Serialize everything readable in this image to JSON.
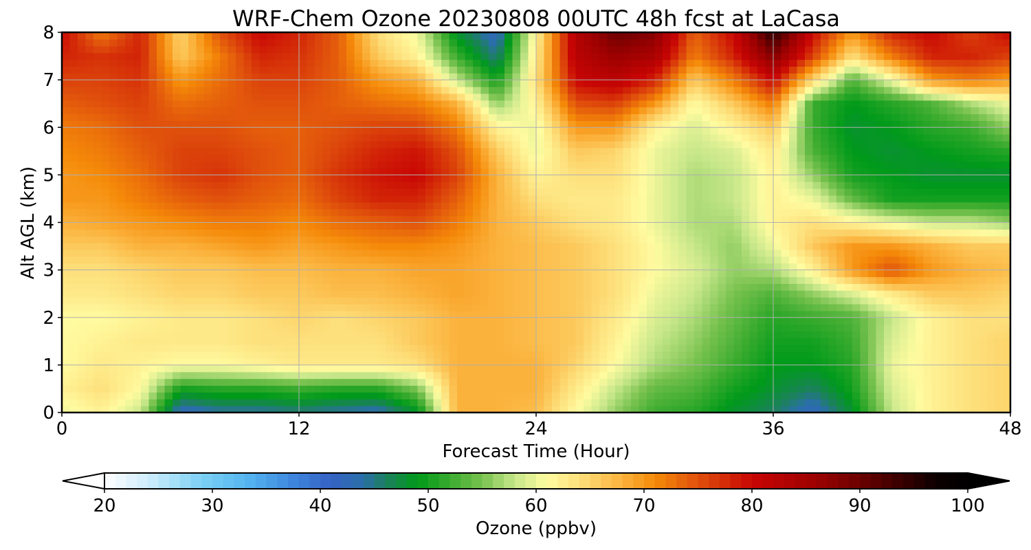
{
  "chart_data": {
    "type": "heatmap",
    "title": "WRF-Chem Ozone  20230808 00UTC 48h fcst at LaCasa",
    "xlabel": "Forecast Time (Hour)",
    "ylabel": "Alt AGL (km)",
    "xlim": [
      0,
      48
    ],
    "ylim": [
      0,
      8
    ],
    "x_ticks": [
      0,
      12,
      24,
      36,
      48
    ],
    "y_ticks": [
      0,
      1,
      2,
      3,
      4,
      5,
      6,
      7,
      8
    ],
    "grid": true,
    "x": [
      0,
      2,
      4,
      6,
      8,
      10,
      12,
      14,
      16,
      18,
      20,
      22,
      24,
      26,
      28,
      30,
      32,
      34,
      36,
      38,
      40,
      42,
      44,
      46,
      48
    ],
    "y": [
      0,
      0.5,
      1,
      1.5,
      2,
      2.5,
      3,
      3.5,
      4,
      4.5,
      5,
      5.5,
      6,
      6.5,
      7,
      7.5,
      8
    ],
    "z_units": "ppbv",
    "z": [
      [
        60,
        62,
        58,
        42,
        44,
        44,
        45,
        44,
        43,
        48,
        68,
        68,
        67,
        61,
        56,
        52,
        51,
        48,
        46,
        42,
        48,
        58,
        62,
        64,
        65
      ],
      [
        62,
        64,
        61,
        50,
        51,
        51,
        52,
        51,
        51,
        55,
        68,
        68,
        68,
        63,
        58,
        54,
        53,
        50,
        48,
        46,
        50,
        59,
        62,
        64,
        65
      ],
      [
        61,
        63,
        62,
        61,
        61,
        62,
        63,
        63,
        63,
        64,
        68,
        68,
        68,
        65,
        61,
        57,
        55,
        52,
        49,
        49,
        51,
        60,
        62,
        64,
        65
      ],
      [
        61,
        62,
        63,
        63,
        63,
        64,
        64,
        64,
        64,
        66,
        68,
        68,
        67,
        66,
        62,
        58,
        56,
        53,
        50,
        50,
        52,
        59,
        62,
        64,
        65
      ],
      [
        61,
        61,
        62,
        63,
        63,
        64,
        65,
        64,
        65,
        66,
        68,
        68,
        67,
        66,
        63,
        59,
        57,
        54,
        51,
        52,
        53,
        58,
        62,
        64,
        64
      ],
      [
        63,
        63,
        64,
        65,
        65,
        66,
        66,
        67,
        67,
        68,
        69,
        68,
        67,
        66,
        64,
        60,
        58,
        55,
        53,
        56,
        59,
        63,
        66,
        66,
        65
      ],
      [
        64,
        64,
        65,
        66,
        66,
        67,
        67,
        68,
        68,
        69,
        69,
        68,
        67,
        66,
        64,
        61,
        59,
        56,
        57,
        62,
        70,
        75,
        70,
        68,
        67
      ],
      [
        66,
        66,
        68,
        68,
        69,
        70,
        69,
        70,
        71,
        71,
        70,
        68,
        67,
        66,
        64,
        61,
        58,
        56,
        60,
        66,
        70,
        70,
        68,
        66,
        66
      ],
      [
        68,
        69,
        70,
        71,
        72,
        72,
        71,
        73,
        74,
        75,
        72,
        68,
        66,
        64,
        63,
        60,
        57,
        57,
        62,
        64,
        62,
        60,
        58,
        58,
        56
      ],
      [
        70,
        70,
        72,
        74,
        75,
        74,
        73,
        76,
        78,
        78,
        74,
        68,
        64,
        63,
        63,
        60,
        57,
        58,
        62,
        60,
        54,
        50,
        50,
        50,
        50
      ],
      [
        70,
        71,
        73,
        76,
        77,
        75,
        74,
        77,
        79,
        80,
        76,
        68,
        62,
        64,
        64,
        60,
        57,
        58,
        62,
        56,
        50,
        49,
        48,
        48,
        48
      ],
      [
        71,
        72,
        74,
        76,
        76,
        75,
        74,
        76,
        78,
        79,
        75,
        66,
        60,
        66,
        65,
        60,
        58,
        59,
        63,
        53,
        49,
        48,
        49,
        50,
        51
      ],
      [
        72,
        73,
        75,
        75,
        75,
        74,
        74,
        75,
        76,
        76,
        72,
        62,
        60,
        70,
        70,
        62,
        59,
        62,
        66,
        52,
        48,
        49,
        51,
        52,
        56
      ],
      [
        74,
        75,
        76,
        73,
        74,
        75,
        75,
        74,
        73,
        72,
        68,
        56,
        62,
        75,
        76,
        70,
        61,
        66,
        72,
        52,
        49,
        51,
        53,
        57,
        60
      ],
      [
        76,
        76,
        77,
        70,
        73,
        76,
        76,
        74,
        70,
        68,
        58,
        50,
        64,
        80,
        82,
        78,
        66,
        72,
        80,
        65,
        53,
        60,
        70,
        72,
        70
      ],
      [
        78,
        77,
        78,
        66,
        72,
        78,
        77,
        74,
        66,
        62,
        52,
        45,
        63,
        82,
        86,
        84,
        72,
        78,
        88,
        76,
        64,
        72,
        78,
        78,
        76
      ],
      [
        80,
        72,
        78,
        65,
        75,
        80,
        78,
        74,
        64,
        60,
        48,
        42,
        62,
        83,
        90,
        88,
        74,
        80,
        95,
        80,
        70,
        78,
        80,
        76,
        80
      ]
    ],
    "colorbar": {
      "label": "Ozone  (ppbv)",
      "min": 20,
      "max": 100,
      "ticks": [
        20,
        30,
        40,
        50,
        60,
        70,
        80,
        90,
        100
      ],
      "extend": "both",
      "stops": [
        {
          "v": 20,
          "c": "#ffffff"
        },
        {
          "v": 24,
          "c": "#cfeefb"
        },
        {
          "v": 29,
          "c": "#7cd0f5"
        },
        {
          "v": 33,
          "c": "#57b7f0"
        },
        {
          "v": 37,
          "c": "#3f8be0"
        },
        {
          "v": 41,
          "c": "#3562c4"
        },
        {
          "v": 44,
          "c": "#2a6fa8"
        },
        {
          "v": 46,
          "c": "#1d8060"
        },
        {
          "v": 49,
          "c": "#009a1a"
        },
        {
          "v": 52,
          "c": "#3aab2e"
        },
        {
          "v": 55,
          "c": "#78c24f"
        },
        {
          "v": 58,
          "c": "#c7e78a"
        },
        {
          "v": 61,
          "c": "#fffba0"
        },
        {
          "v": 64,
          "c": "#fde07c"
        },
        {
          "v": 68,
          "c": "#fbb23c"
        },
        {
          "v": 71,
          "c": "#f58a09"
        },
        {
          "v": 75,
          "c": "#e0510c"
        },
        {
          "v": 80,
          "c": "#c80504"
        },
        {
          "v": 86,
          "c": "#9c0101"
        },
        {
          "v": 92,
          "c": "#520000"
        },
        {
          "v": 97,
          "c": "#0d0000"
        },
        {
          "v": 100,
          "c": "#000000"
        }
      ]
    }
  }
}
